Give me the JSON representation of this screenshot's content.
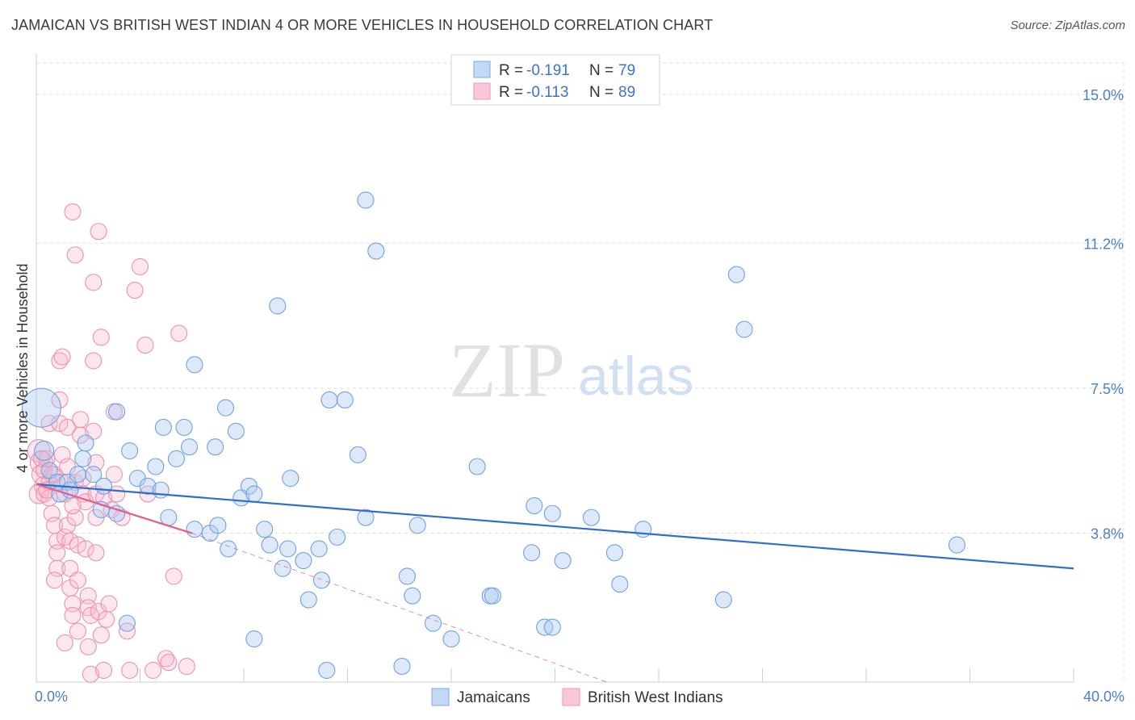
{
  "header": {
    "title": "JAMAICAN VS BRITISH WEST INDIAN 4 OR MORE VEHICLES IN HOUSEHOLD CORRELATION CHART",
    "source": "Source: ZipAtlas.com"
  },
  "watermark": {
    "zip": "ZIP",
    "atlas": "atlas"
  },
  "legend_top": {
    "r_label": "R =",
    "n_label": "N =",
    "rows": [
      {
        "r": "-0.191",
        "n": "79"
      },
      {
        "r": "-0.113",
        "n": "89"
      }
    ]
  },
  "chart_data": {
    "type": "scatter",
    "title": "JAMAICAN VS BRITISH WEST INDIAN 4 OR MORE VEHICLES IN HOUSEHOLD CORRELATION CHART",
    "xlabel": "",
    "ylabel": "4 or more Vehicles in Household",
    "xlim": [
      0,
      40
    ],
    "ylim": [
      0,
      15.8
    ],
    "x_tick_labels": [
      "0.0%",
      "40.0%"
    ],
    "y_ticks": [
      3.8,
      7.5,
      11.2,
      15.0
    ],
    "y_tick_labels": [
      "3.8%",
      "7.5%",
      "11.2%",
      "15.0%"
    ],
    "colors": {
      "jamaicans": "#6fa1e3",
      "bwi": "#ee8fb0",
      "jam_line": "#2f6fcb",
      "bwi_line": "#e25d8a",
      "tick_text": "#4a7fcb"
    },
    "series": [
      {
        "name": "Jamaicans",
        "r": -0.191,
        "n": 79,
        "trend": {
          "x": [
            0,
            40
          ],
          "y": [
            5.05,
            2.9
          ]
        },
        "points": [
          [
            0.2,
            7.0,
            24
          ],
          [
            0.3,
            5.9,
            12
          ],
          [
            0.5,
            5.4,
            10
          ],
          [
            0.8,
            5.1,
            10
          ],
          [
            1.2,
            5.1,
            10
          ],
          [
            0.9,
            4.8,
            10
          ],
          [
            1.8,
            5.7,
            10
          ],
          [
            1.9,
            6.1,
            10
          ],
          [
            2.2,
            5.3,
            10
          ],
          [
            2.6,
            5.0,
            10
          ],
          [
            3.1,
            6.9,
            10
          ],
          [
            3.1,
            4.3,
            10
          ],
          [
            3.6,
            5.9,
            10
          ],
          [
            3.9,
            5.2,
            10
          ],
          [
            4.3,
            5.0,
            10
          ],
          [
            4.8,
            4.9,
            10
          ],
          [
            4.9,
            6.5,
            10
          ],
          [
            5.1,
            4.2,
            10
          ],
          [
            5.4,
            5.7,
            10
          ],
          [
            5.7,
            6.5,
            10
          ],
          [
            5.9,
            6.0,
            10
          ],
          [
            6.1,
            3.9,
            10
          ],
          [
            6.1,
            8.1,
            10
          ],
          [
            6.7,
            3.8,
            10
          ],
          [
            6.9,
            6.0,
            10
          ],
          [
            7.0,
            4.0,
            10
          ],
          [
            7.3,
            7.0,
            10
          ],
          [
            7.4,
            3.4,
            10
          ],
          [
            7.7,
            6.4,
            10
          ],
          [
            7.9,
            4.7,
            10
          ],
          [
            8.2,
            5.0,
            10
          ],
          [
            8.4,
            4.8,
            10
          ],
          [
            8.4,
            1.1,
            10
          ],
          [
            8.8,
            3.9,
            10
          ],
          [
            9.0,
            3.5,
            10
          ],
          [
            9.3,
            9.6,
            10
          ],
          [
            9.5,
            2.9,
            10
          ],
          [
            9.7,
            3.4,
            10
          ],
          [
            9.8,
            5.2,
            10
          ],
          [
            10.3,
            3.1,
            10
          ],
          [
            10.5,
            2.1,
            10
          ],
          [
            10.9,
            3.4,
            10
          ],
          [
            11.0,
            2.6,
            10
          ],
          [
            11.2,
            0.3,
            10
          ],
          [
            11.6,
            3.7,
            10
          ],
          [
            11.3,
            7.2,
            10
          ],
          [
            11.9,
            7.2,
            10
          ],
          [
            12.4,
            5.8,
            10
          ],
          [
            12.7,
            12.3,
            10
          ],
          [
            12.7,
            4.2,
            10
          ],
          [
            13.1,
            11.0,
            10
          ],
          [
            14.1,
            0.4,
            10
          ],
          [
            14.3,
            2.7,
            10
          ],
          [
            14.5,
            2.2,
            10
          ],
          [
            14.7,
            4.0,
            10
          ],
          [
            15.3,
            1.5,
            10
          ],
          [
            16.0,
            1.1,
            10
          ],
          [
            17.0,
            5.5,
            10
          ],
          [
            17.5,
            2.2,
            10
          ],
          [
            17.6,
            2.2,
            10
          ],
          [
            19.1,
            3.3,
            10
          ],
          [
            19.2,
            4.5,
            10
          ],
          [
            19.6,
            1.4,
            10
          ],
          [
            19.9,
            1.4,
            10
          ],
          [
            19.9,
            4.3,
            10
          ],
          [
            20.3,
            3.1,
            10
          ],
          [
            21.4,
            4.2,
            10
          ],
          [
            22.3,
            3.3,
            10
          ],
          [
            22.5,
            2.5,
            10
          ],
          [
            23.4,
            3.9,
            10
          ],
          [
            26.5,
            2.1,
            10
          ],
          [
            27.0,
            10.4,
            10
          ],
          [
            27.3,
            9.0,
            10
          ],
          [
            35.5,
            3.5,
            10
          ],
          [
            1.3,
            4.9,
            10
          ],
          [
            1.6,
            5.3,
            10
          ],
          [
            2.5,
            4.4,
            10
          ],
          [
            3.5,
            1.5,
            10
          ],
          [
            4.6,
            5.5,
            10
          ]
        ]
      },
      {
        "name": "British West Indians",
        "r": -0.113,
        "n": 89,
        "trend": {
          "x": [
            0,
            6
          ],
          "y": [
            5.05,
            3.8
          ]
        },
        "trend_ext": {
          "x": [
            6,
            22
          ],
          "y": [
            3.8,
            0.0
          ]
        },
        "points": [
          [
            0.1,
            5.9,
            14
          ],
          [
            0.2,
            5.6,
            14
          ],
          [
            0.2,
            5.3,
            12
          ],
          [
            0.3,
            5.0,
            12
          ],
          [
            0.1,
            4.8,
            12
          ],
          [
            0.3,
            4.8,
            10
          ],
          [
            0.3,
            5.4,
            10
          ],
          [
            0.4,
            5.7,
            10
          ],
          [
            0.5,
            5.1,
            10
          ],
          [
            0.5,
            4.7,
            10
          ],
          [
            0.5,
            6.6,
            10
          ],
          [
            0.6,
            4.3,
            10
          ],
          [
            0.7,
            5.3,
            10
          ],
          [
            0.7,
            4.0,
            10
          ],
          [
            0.8,
            3.6,
            10
          ],
          [
            0.8,
            3.3,
            10
          ],
          [
            0.8,
            2.9,
            10
          ],
          [
            0.9,
            7.2,
            10
          ],
          [
            0.9,
            6.6,
            10
          ],
          [
            0.9,
            8.2,
            10
          ],
          [
            1.0,
            8.3,
            10
          ],
          [
            1.0,
            5.8,
            10
          ],
          [
            1.0,
            5.1,
            10
          ],
          [
            1.1,
            4.8,
            10
          ],
          [
            1.1,
            3.7,
            10
          ],
          [
            1.2,
            6.5,
            10
          ],
          [
            1.2,
            5.5,
            10
          ],
          [
            1.2,
            4.0,
            10
          ],
          [
            1.3,
            3.6,
            10
          ],
          [
            1.3,
            2.9,
            10
          ],
          [
            1.3,
            2.4,
            10
          ],
          [
            1.4,
            2.0,
            10
          ],
          [
            1.4,
            1.7,
            10
          ],
          [
            1.4,
            12.0,
            10
          ],
          [
            1.5,
            10.9,
            10
          ],
          [
            1.5,
            5.1,
            10
          ],
          [
            1.5,
            4.2,
            10
          ],
          [
            1.6,
            3.5,
            10
          ],
          [
            1.6,
            2.6,
            10
          ],
          [
            1.6,
            1.3,
            10
          ],
          [
            1.7,
            6.7,
            10
          ],
          [
            1.7,
            6.3,
            10
          ],
          [
            1.8,
            5.2,
            10
          ],
          [
            1.8,
            4.8,
            10
          ],
          [
            1.9,
            4.6,
            10
          ],
          [
            1.9,
            3.4,
            10
          ],
          [
            2.0,
            2.2,
            10
          ],
          [
            2.0,
            1.9,
            10
          ],
          [
            2.1,
            1.7,
            10
          ],
          [
            2.0,
            0.9,
            10
          ],
          [
            2.1,
            0.2,
            10
          ],
          [
            2.2,
            10.2,
            10
          ],
          [
            2.2,
            8.2,
            10
          ],
          [
            2.2,
            6.4,
            10
          ],
          [
            2.3,
            5.6,
            10
          ],
          [
            2.3,
            4.8,
            10
          ],
          [
            2.3,
            4.2,
            10
          ],
          [
            2.3,
            3.3,
            10
          ],
          [
            2.4,
            1.8,
            10
          ],
          [
            2.5,
            1.2,
            10
          ],
          [
            2.6,
            0.3,
            10
          ],
          [
            2.4,
            11.5,
            10
          ],
          [
            2.5,
            8.8,
            10
          ],
          [
            2.6,
            4.7,
            10
          ],
          [
            2.7,
            1.6,
            10
          ],
          [
            2.8,
            2.0,
            10
          ],
          [
            2.9,
            4.4,
            10
          ],
          [
            3.0,
            5.3,
            10
          ],
          [
            3.0,
            6.9,
            10
          ],
          [
            3.1,
            4.8,
            10
          ],
          [
            3.3,
            4.2,
            10
          ],
          [
            3.5,
            1.3,
            10
          ],
          [
            3.6,
            0.3,
            10
          ],
          [
            3.8,
            10.0,
            10
          ],
          [
            4.0,
            10.6,
            10
          ],
          [
            4.2,
            8.6,
            10
          ],
          [
            4.3,
            4.8,
            10
          ],
          [
            4.5,
            0.3,
            10
          ],
          [
            5.0,
            0.6,
            10
          ],
          [
            5.1,
            0.5,
            10
          ],
          [
            5.3,
            2.7,
            10
          ],
          [
            5.5,
            8.9,
            10
          ],
          [
            5.8,
            0.4,
            10
          ],
          [
            0.4,
            4.9,
            10
          ],
          [
            0.6,
            5.3,
            10
          ],
          [
            0.7,
            2.6,
            10
          ],
          [
            1.1,
            1.0,
            10
          ],
          [
            1.4,
            4.5,
            10
          ],
          [
            0.2,
            5.7,
            10
          ]
        ]
      }
    ]
  },
  "legend_bottom": {
    "items": [
      {
        "label": "Jamaicans"
      },
      {
        "label": "British West Indians"
      }
    ]
  }
}
